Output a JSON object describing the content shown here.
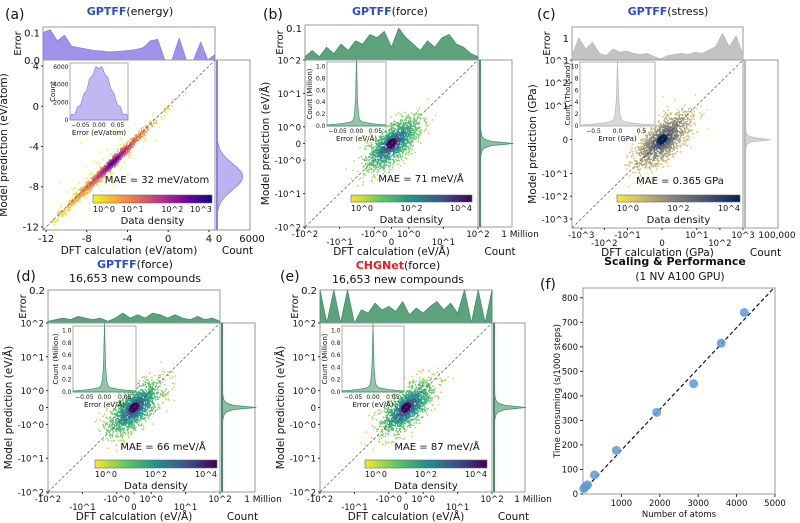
{
  "colors": {
    "gptff": "#2b4bd6",
    "chgnet": "#ee1c1c",
    "energy": "#8d7fe6",
    "force": "#3f9366",
    "stress": "#b9b9b9",
    "scatter_f": "#5b9bd5"
  },
  "colormaps": {
    "plasma": [
      "#f0f921",
      "#fca636",
      "#e16462",
      "#b12a90",
      "#6a00a8",
      "#0d0887"
    ],
    "viridis": [
      "#fde725",
      "#5ec962",
      "#21918c",
      "#3b528b",
      "#440154"
    ],
    "cividis": [
      "#fee838",
      "#cbba69",
      "#948f78",
      "#666970",
      "#35456c",
      "#00224e"
    ]
  },
  "panels": [
    {
      "label": "(a)",
      "model": "GPTFF",
      "model_color": "gptff",
      "title_rest": "(energy)",
      "subtitle": "",
      "scale": "linear",
      "lim": [
        -12.3,
        4.6
      ],
      "x_ticks": [
        {
          "v": -12,
          "t": "-12"
        },
        {
          "v": -8,
          "t": "-8"
        },
        {
          "v": -4,
          "t": "-4"
        },
        {
          "v": 0,
          "t": "0"
        },
        {
          "v": 4,
          "t": "4"
        }
      ],
      "y_ticks": [
        {
          "v": -12,
          "t": "-12"
        },
        {
          "v": -8,
          "t": "-8"
        },
        {
          "v": -4,
          "t": "-4"
        },
        {
          "v": 0,
          "t": "0"
        },
        {
          "v": 4,
          "t": "4"
        }
      ],
      "xlabel": "DFT calculation (eV/atom)",
      "ylabel": "Model prediction (eV/atom)",
      "mae": "MAE = 32 meV/atom",
      "colormap": "plasma",
      "cbar_ticks": [
        "10^0",
        "10^1",
        "10^2",
        "10^3"
      ],
      "cbar_label": "Data density",
      "fill": "energy",
      "error_label": "Error",
      "error_lim": [
        0,
        0.12
      ],
      "error_ticks": [
        {
          "v": 0,
          "t": "0.0"
        },
        {
          "v": 0.1,
          "t": "0.1"
        }
      ],
      "error_profile": [
        0.1,
        0.11,
        0.07,
        0.09,
        0.05,
        0.045,
        0.04,
        0.035,
        0.033,
        0.03,
        0.03,
        0.032,
        0.035,
        0.038,
        0.045,
        0.07,
        0.075,
        0.0,
        0.0,
        0.08,
        0.0,
        0.0,
        0.065,
        0.0,
        0.02
      ],
      "count_label": "Count",
      "count_ticks": [
        "0",
        "6000"
      ],
      "count_dist": {
        "type": "gauss",
        "center": -7,
        "width": 1.3,
        "peak": 0.78
      },
      "inset": {
        "xlabel": "Error (eV/atom)",
        "ylabel": "Count",
        "x_ticks": [
          "−0.05",
          "0.00",
          "0.05"
        ],
        "y_ticks": [
          "0",
          "2000",
          "4000",
          "6000"
        ],
        "shape": "gauss"
      }
    },
    {
      "label": "(b)",
      "model": "GPTFF",
      "model_color": "gptff",
      "title_rest": "(force)",
      "subtitle": "",
      "scale": "symlog",
      "lim": [
        -2.5,
        2.5
      ],
      "x_ticks": [
        {
          "v": -100,
          "t": "-10^2"
        },
        {
          "v": -10,
          "t": "-10^1"
        },
        {
          "v": -1,
          "t": "-10^0"
        },
        {
          "v": 0,
          "t": "0"
        },
        {
          "v": 1,
          "t": "10^0"
        },
        {
          "v": 10,
          "t": "10^1"
        },
        {
          "v": 100,
          "t": "10^2"
        }
      ],
      "y_ticks": [
        {
          "v": -100,
          "t": "-10^2"
        },
        {
          "v": -10,
          "t": "-10^1"
        },
        {
          "v": -1,
          "t": "-10^0"
        },
        {
          "v": 0,
          "t": "0"
        },
        {
          "v": 1,
          "t": "10^0"
        },
        {
          "v": 10,
          "t": "10^1"
        },
        {
          "v": 100,
          "t": "10^2"
        }
      ],
      "xlabel": "DFT calculation (eV/Å)",
      "ylabel": "Model prediction (eV/Å)",
      "mae": "MAE = 71 meV/Å",
      "colormap": "viridis",
      "cbar_ticks": [
        "10^0",
        "10^2",
        "10^4"
      ],
      "cbar_label": "Data density",
      "fill": "force",
      "error_label": "Error",
      "error_lim": [
        0,
        0.11
      ],
      "error_ticks": [
        {
          "v": 0.1,
          "t": "0.1"
        }
      ],
      "error_profile": [
        0.01,
        0.03,
        0.01,
        0.04,
        0.02,
        0.05,
        0.03,
        0.06,
        0.05,
        0.08,
        0.07,
        0.09,
        0.04,
        0.1,
        0.07,
        0.05,
        0.03,
        0.06,
        0.04,
        0.07,
        0.08,
        0.05,
        0.04,
        0.02,
        0.01
      ],
      "count_label": "Count",
      "count_ticks": [
        "1 Million"
      ],
      "count_dist": {
        "type": "spike",
        "center": 0,
        "peak": 0.92
      },
      "inset": {
        "xlabel": "Error (eV/Å)",
        "ylabel": "Count (Million)",
        "x_ticks": [
          "−0.05",
          "0.00",
          "0.05"
        ],
        "y_ticks": [
          "0.0",
          "0.2",
          "0.4",
          "0.6",
          "0.8",
          "1.0"
        ],
        "shape": "spike"
      }
    },
    {
      "label": "(c)",
      "model": "GPTFF",
      "model_color": "gptff",
      "title_rest": "(stress)",
      "subtitle": "",
      "scale": "symlog",
      "lim": [
        -3.9,
        3.5
      ],
      "x_ticks": [
        {
          "v": -1000,
          "t": "-10^3"
        },
        {
          "v": -100,
          "t": "-10^2"
        },
        {
          "v": -10,
          "t": "-10^1"
        },
        {
          "v": 0,
          "t": "0"
        },
        {
          "v": 10,
          "t": "10^1"
        },
        {
          "v": 100,
          "t": "10^2"
        },
        {
          "v": 1000,
          "t": "10^3"
        }
      ],
      "y_ticks": [
        {
          "v": -1000,
          "t": "-10^3"
        },
        {
          "v": -100,
          "t": "-10^2"
        },
        {
          "v": -10,
          "t": "-10^1"
        },
        {
          "v": 0,
          "t": "0"
        },
        {
          "v": 10,
          "t": "10^1"
        },
        {
          "v": 100,
          "t": "10^2"
        },
        {
          "v": 1000,
          "t": "10^3"
        }
      ],
      "xlabel": "DFT calculation (GPa)",
      "ylabel": "Model prediction (GPa)",
      "mae": "MAE = 0.365 GPa",
      "colormap": "cividis",
      "cbar_ticks": [
        "10^0",
        "10^2",
        "10^4"
      ],
      "cbar_label": "Data density",
      "fill": "stress",
      "error_label": "Error",
      "error_lim": [
        0,
        1.5
      ],
      "error_ticks": [
        {
          "v": 1,
          "t": "1"
        }
      ],
      "error_profile": [
        0.2,
        1.0,
        0.5,
        0.8,
        0.3,
        0.2,
        0.5,
        0.35,
        0.4,
        0.3,
        0.25,
        0.3,
        0.15,
        0.05,
        0.2,
        0.25,
        0.3,
        0.25,
        0.35,
        0.3,
        0.45,
        0.6,
        1.2,
        0.6,
        1.1,
        0.2
      ],
      "count_label": "Count",
      "count_ticks": [
        "100,000"
      ],
      "count_dist": {
        "type": "spike",
        "center": 0,
        "peak": 0.9
      },
      "inset": {
        "xlabel": "Error (GPa)",
        "ylabel": "Count (Thousand)",
        "x_ticks": [
          "−0.5",
          "0.0",
          "0.5"
        ],
        "y_ticks": [
          "0",
          "2",
          "4",
          "6",
          "8",
          "10"
        ],
        "shape": "spike"
      }
    },
    {
      "label": "(d)",
      "model": "GPTFF",
      "model_color": "gptff",
      "title_rest": "(force)",
      "subtitle": "16,653 new compounds",
      "scale": "symlog",
      "lim": [
        -2.5,
        2.5
      ],
      "x_ticks": [
        {
          "v": -100,
          "t": "-10^2"
        },
        {
          "v": -10,
          "t": "-10^1"
        },
        {
          "v": -1,
          "t": "-10^0"
        },
        {
          "v": 0,
          "t": "0"
        },
        {
          "v": 1,
          "t": "10^0"
        },
        {
          "v": 10,
          "t": "10^1"
        },
        {
          "v": 100,
          "t": "10^2"
        }
      ],
      "y_ticks": [
        {
          "v": -100,
          "t": "-10^2"
        },
        {
          "v": -10,
          "t": "-10^1"
        },
        {
          "v": -1,
          "t": "-10^0"
        },
        {
          "v": 0,
          "t": "0"
        },
        {
          "v": 1,
          "t": "10^0"
        },
        {
          "v": 10,
          "t": "10^1"
        },
        {
          "v": 100,
          "t": "10^2"
        }
      ],
      "xlabel": "DFT calculation  (eV/Å)",
      "ylabel": "Model prediction (eV/Å)",
      "mae": "MAE = 66 meV/Å",
      "colormap": "viridis",
      "cbar_ticks": [
        "10^0",
        "10^2",
        "10^4"
      ],
      "cbar_label": "Data density",
      "fill": "force",
      "error_label": "Error",
      "error_lim": [
        0,
        0.2
      ],
      "error_ticks": [
        {
          "v": 0.2,
          "t": "0.2"
        }
      ],
      "error_profile": [
        0.01,
        0.02,
        0.03,
        0.02,
        0.04,
        0.03,
        0.02,
        0.03,
        0.01,
        0.03,
        0.06,
        0.03,
        0.05,
        0.03,
        0.06,
        0.05,
        0.03,
        0.05,
        0.03,
        0.02,
        0.04,
        0.02,
        0.03,
        0.01
      ],
      "count_label": "Count",
      "count_ticks": [
        "1 Million"
      ],
      "count_dist": {
        "type": "spike",
        "center": 0,
        "peak": 0.92
      },
      "inset": {
        "xlabel": "Error (eV/Å)",
        "ylabel": "Count (Million)",
        "x_ticks": [
          "−0.05",
          "0.00",
          "0.05"
        ],
        "y_ticks": [
          "0.0",
          "0.2",
          "0.4",
          "0.6",
          "0.8",
          "1.0"
        ],
        "shape": "spike"
      }
    },
    {
      "label": "(e)",
      "model": "CHGNet",
      "model_color": "chgnet",
      "title_rest": "(force)",
      "subtitle": "16,653 new compounds",
      "scale": "symlog",
      "lim": [
        -2.5,
        2.5
      ],
      "x_ticks": [
        {
          "v": -100,
          "t": "-10^2"
        },
        {
          "v": -10,
          "t": "-10^1"
        },
        {
          "v": -1,
          "t": "-10^0"
        },
        {
          "v": 0,
          "t": "0"
        },
        {
          "v": 1,
          "t": "10^0"
        },
        {
          "v": 10,
          "t": "10^1"
        },
        {
          "v": 100,
          "t": "10^2"
        }
      ],
      "y_ticks": [
        {
          "v": -100,
          "t": "-10^2"
        },
        {
          "v": -10,
          "t": "-10^1"
        },
        {
          "v": -1,
          "t": "-10^0"
        },
        {
          "v": 0,
          "t": "0"
        },
        {
          "v": 1,
          "t": "10^0"
        },
        {
          "v": 10,
          "t": "10^1"
        },
        {
          "v": 100,
          "t": "10^2"
        }
      ],
      "xlabel": "DFT calculation  (eV/Å)",
      "ylabel": "Model prediction (eV/Å)",
      "mae": "MAE = 87 meV/Å",
      "colormap": "viridis",
      "cbar_ticks": [
        "10^0",
        "10^2",
        "10^4"
      ],
      "cbar_label": "Data density",
      "fill": "force",
      "error_label": "Error",
      "error_lim": [
        0,
        0.2
      ],
      "error_ticks": [
        {
          "v": 0.2,
          "t": "0.2"
        }
      ],
      "error_profile": [
        0.2,
        0.0,
        0.2,
        0.0,
        0.2,
        0.0,
        0.08,
        0.06,
        0.12,
        0.08,
        0.1,
        0.07,
        0.13,
        0.05,
        0.09,
        0.06,
        0.1,
        0.13,
        0.08,
        0.12,
        0.06,
        0.2,
        0.0,
        0.2,
        0.0,
        0.2
      ],
      "count_label": "Count",
      "count_ticks": [
        "1 Million"
      ],
      "count_dist": {
        "type": "spike",
        "center": 0,
        "peak": 0.92
      },
      "inset": {
        "xlabel": "Error (eV/Å)",
        "ylabel": "Count (Million)",
        "x_ticks": [
          "−0.05",
          "0.00",
          "0.05"
        ],
        "y_ticks": [
          "0.0",
          "0.2",
          "0.4",
          "0.6",
          "0.8",
          "1.0"
        ],
        "shape": "spike"
      }
    }
  ],
  "chart_data": [
    {
      "type": "scatter",
      "panel": "(a)",
      "title": "GPTFF(energy)",
      "xlabel": "DFT calculation (eV/atom)",
      "ylabel": "Model prediction (eV/atom)",
      "annotation": "MAE = 32 meV/atom",
      "xlim": [
        -12,
        4
      ],
      "ylim": [
        -12,
        4
      ]
    },
    {
      "type": "scatter",
      "panel": "(b)",
      "title": "GPTFF(force)",
      "xlabel": "DFT calculation (eV/Å)",
      "ylabel": "Model prediction (eV/Å)",
      "annotation": "MAE = 71 meV/Å",
      "xscale": "symlog",
      "xlim": [
        -100,
        100
      ],
      "ylim": [
        -100,
        100
      ]
    },
    {
      "type": "scatter",
      "panel": "(c)",
      "title": "GPTFF(stress)",
      "xlabel": "DFT calculation (GPa)",
      "ylabel": "Model prediction (GPa)",
      "annotation": "MAE = 0.365 GPa",
      "xscale": "symlog",
      "xlim": [
        -1000,
        1000
      ],
      "ylim": [
        -1000,
        1000
      ]
    },
    {
      "type": "scatter",
      "panel": "(d)",
      "title": "GPTFF(force) 16,653 new compounds",
      "annotation": "MAE = 66 meV/Å",
      "xscale": "symlog",
      "xlim": [
        -100,
        100
      ]
    },
    {
      "type": "scatter",
      "panel": "(e)",
      "title": "CHGNet(force) 16,653 new compounds",
      "annotation": "MAE = 87 meV/Å",
      "xscale": "symlog",
      "xlim": [
        -100,
        100
      ]
    },
    {
      "type": "scatter",
      "panel": "(f)",
      "title": "Scaling & Performance",
      "subtitle": "(1 NV A100 GPU)",
      "xlabel": "Number of atoms",
      "ylabel": "Time consuming (s/1000 steps)",
      "xlim": [
        0,
        5000
      ],
      "ylim": [
        0,
        840
      ],
      "x_ticks": [
        "1000",
        "2000",
        "3000",
        "4000",
        "5000"
      ],
      "y_ticks": [
        "0",
        "100",
        "200",
        "300",
        "400",
        "500",
        "600",
        "700",
        "800"
      ],
      "x": [
        20,
        60,
        120,
        300,
        870,
        1920,
        2880,
        3600,
        4200
      ],
      "y": [
        22,
        30,
        37,
        78,
        178,
        333,
        450,
        615,
        740
      ],
      "fit_line": {
        "x": [
          0,
          5000
        ],
        "y": [
          12,
          845
        ]
      },
      "label": "(f)"
    }
  ]
}
